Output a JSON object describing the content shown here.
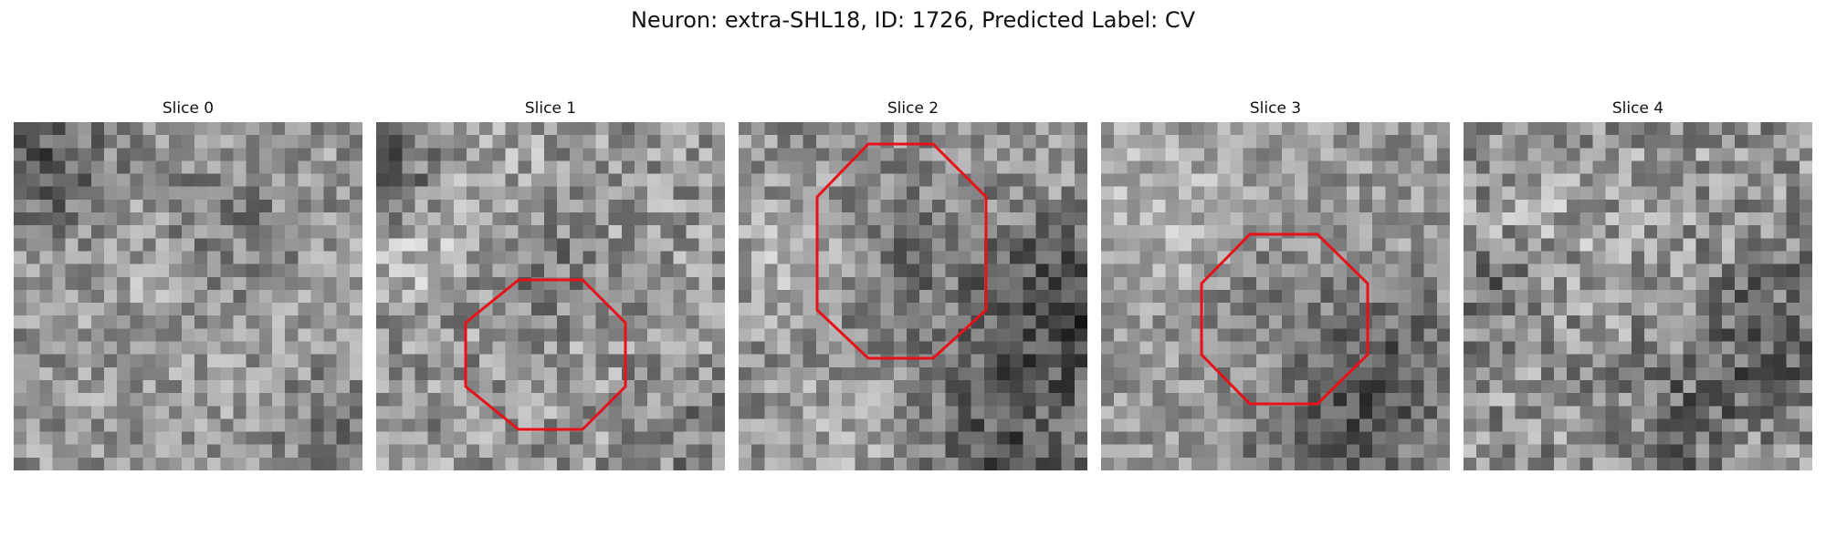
{
  "figure": {
    "title": "Neuron: extra-SHL18, ID: 1726, Predicted Label: CV"
  },
  "panels": [
    {
      "title": "Slice 0",
      "has_roi": false
    },
    {
      "title": "Slice 1",
      "has_roi": true
    },
    {
      "title": "Slice 2",
      "has_roi": true
    },
    {
      "title": "Slice 3",
      "has_roi": true
    },
    {
      "title": "Slice 4",
      "has_roi": false
    }
  ],
  "colors": {
    "roi_outline": "#e8111a",
    "background": "#ffffff"
  },
  "image": {
    "colormap": "grayscale",
    "grid_size": 27
  }
}
